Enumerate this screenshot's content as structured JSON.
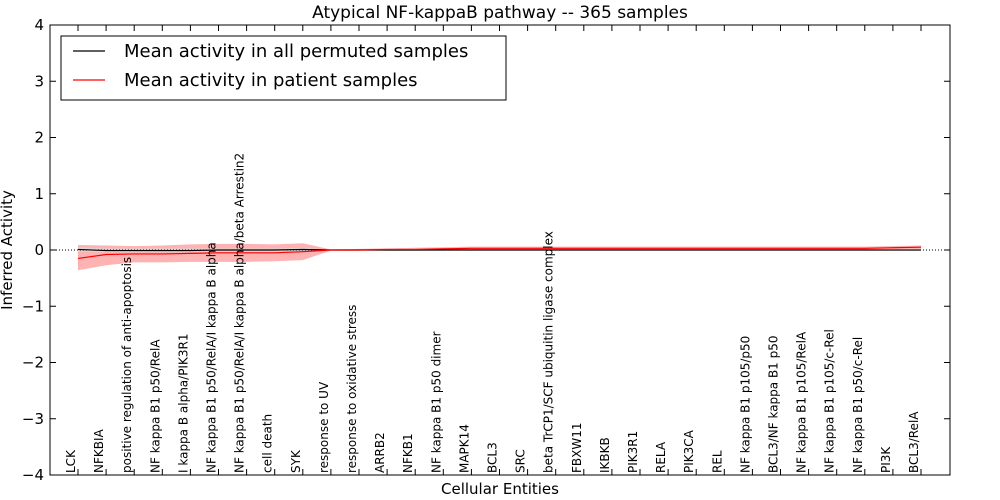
{
  "chart_data": {
    "type": "line",
    "title": "Atypical NF-kappaB pathway -- 365 samples",
    "xlabel": "Cellular Entities",
    "ylabel": "Inferred Activity",
    "ylim": [
      -4,
      4
    ],
    "yticks": [
      -4,
      -3,
      -2,
      -1,
      0,
      1,
      2,
      3,
      4
    ],
    "ytick_labels": [
      "−4",
      "−3",
      "−2",
      "−1",
      "0",
      "1",
      "2",
      "3",
      "4"
    ],
    "grid": false,
    "legend_position": "top-left",
    "categories": [
      "LCK",
      "NFKBIA",
      "positive regulation of anti-apoptosis",
      "NF kappa B1 p50/RelA",
      "I kappa B alpha/PIK3R1",
      "NF kappa B1 p50/RelA/I kappa B alpha",
      "NF kappa B1 p50/RelA/I kappa B alpha/beta Arrestin2",
      "cell death",
      "SYK",
      "response to UV",
      "response to oxidative stress",
      "ARRB2",
      "NFKB1",
      "NF kappa B1 p50 dimer",
      "MAPK14",
      "BCL3",
      "SRC",
      "beta TrCP1/SCF ubiquitin ligase complex",
      "FBXW11",
      "IKBKB",
      "PIK3R1",
      "RELA",
      "PIK3CA",
      "REL",
      "NF kappa B1 p105/p50",
      "BCL3/NF kappa B1 p50",
      "NF kappa B1 p105/RelA",
      "NF kappa B1 p105/c-Rel",
      "NF kappa B1 p50/c-Rel",
      "PI3K",
      "BCL3/RelA"
    ],
    "series": [
      {
        "name": "Mean activity in all permuted samples",
        "color": "#000000",
        "values": [
          0.01,
          -0.01,
          -0.01,
          -0.01,
          -0.01,
          0.0,
          0.0,
          0.0,
          0.01,
          0.0,
          0.0,
          0.0,
          0.0,
          0.0,
          0.0,
          0.0,
          0.0,
          0.0,
          0.0,
          0.0,
          0.0,
          0.0,
          0.0,
          0.0,
          0.0,
          0.0,
          0.0,
          0.0,
          0.0,
          0.0,
          0.0
        ],
        "band_low": [
          -0.03,
          -0.04,
          -0.04,
          -0.04,
          -0.04,
          -0.03,
          -0.03,
          -0.03,
          -0.02,
          -0.01,
          -0.01,
          -0.01,
          -0.01,
          -0.01,
          -0.01,
          -0.01,
          -0.01,
          -0.01,
          -0.01,
          -0.01,
          -0.01,
          -0.01,
          -0.01,
          -0.01,
          -0.01,
          -0.01,
          -0.01,
          -0.01,
          -0.01,
          -0.01,
          -0.01
        ],
        "band_high": [
          0.05,
          0.03,
          0.03,
          0.03,
          0.03,
          0.03,
          0.03,
          0.03,
          0.04,
          0.01,
          0.01,
          0.01,
          0.01,
          0.01,
          0.01,
          0.01,
          0.01,
          0.01,
          0.01,
          0.01,
          0.01,
          0.01,
          0.01,
          0.01,
          0.01,
          0.01,
          0.01,
          0.01,
          0.01,
          0.01,
          0.01
        ]
      },
      {
        "name": "Mean activity in patient samples",
        "color": "#ff0000",
        "values": [
          -0.15,
          -0.08,
          -0.07,
          -0.07,
          -0.06,
          -0.05,
          -0.05,
          -0.05,
          -0.03,
          0.0,
          0.0,
          0.01,
          0.01,
          0.02,
          0.03,
          0.03,
          0.03,
          0.03,
          0.03,
          0.03,
          0.03,
          0.03,
          0.03,
          0.03,
          0.03,
          0.03,
          0.03,
          0.03,
          0.03,
          0.04,
          0.05
        ],
        "band_low": [
          -0.36,
          -0.27,
          -0.22,
          -0.22,
          -0.21,
          -0.21,
          -0.21,
          -0.2,
          -0.18,
          -0.01,
          -0.01,
          -0.01,
          -0.01,
          0.0,
          0.01,
          0.01,
          0.01,
          0.01,
          0.01,
          0.01,
          0.01,
          0.01,
          0.01,
          0.01,
          0.01,
          0.01,
          0.01,
          0.01,
          0.01,
          0.02,
          0.02
        ],
        "band_high": [
          0.09,
          0.08,
          0.07,
          0.08,
          0.1,
          0.11,
          0.11,
          0.1,
          0.12,
          0.01,
          0.02,
          0.03,
          0.04,
          0.05,
          0.06,
          0.06,
          0.06,
          0.06,
          0.06,
          0.06,
          0.06,
          0.06,
          0.06,
          0.06,
          0.06,
          0.06,
          0.06,
          0.06,
          0.06,
          0.07,
          0.08
        ]
      }
    ]
  }
}
